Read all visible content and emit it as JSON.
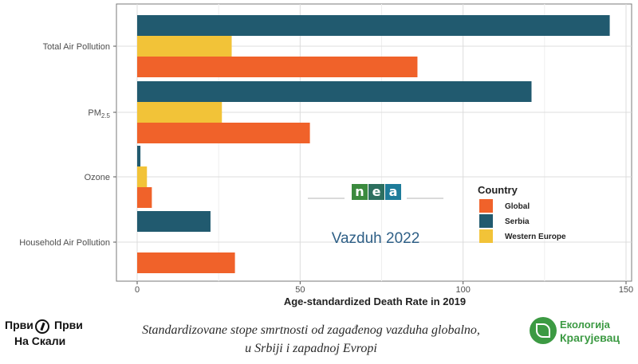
{
  "chart_data": {
    "type": "bar",
    "orientation": "horizontal",
    "categories": [
      "Total Air Pollution",
      "PM",
      "Ozone",
      "Household Air Pollution"
    ],
    "category_subscripts": [
      "",
      "2.5",
      "",
      ""
    ],
    "series": [
      {
        "name": "Global",
        "color": "#f0622a",
        "values": [
          86,
          53,
          4.5,
          30
        ]
      },
      {
        "name": "Serbia",
        "color": "#215a6f",
        "values": [
          145,
          121,
          1,
          22.5
        ]
      },
      {
        "name": "Western Europe",
        "color": "#f2c338",
        "values": [
          29,
          26,
          3,
          0
        ]
      }
    ],
    "bar_order_top_to_bottom": [
      "Serbia",
      "Western Europe",
      "Global"
    ],
    "xlabel": "Age-standardized Death Rate in 2019",
    "xlim": [
      -7,
      150
    ],
    "x_ticks": [
      0,
      50,
      100,
      150
    ],
    "grid": true,
    "legend": {
      "title": "Country",
      "position": "right",
      "entries": [
        "Global",
        "Serbia",
        "Western Europe"
      ]
    }
  },
  "overlay": {
    "logo_letters": [
      "n",
      "e",
      "a"
    ],
    "logo_colors": [
      "#3b8a3e",
      "#2d6f5f",
      "#1e7c9a"
    ],
    "subtitle": "Vazduh 2022"
  },
  "caption": {
    "line1": "Standardizovane stope smrtnosti od zagađenog vazduha globalno,",
    "line2": "u Srbiji i zapadnoj Evropi"
  },
  "brand_left": {
    "word1": "Први",
    "word2": "Први",
    "word3": "На Скали"
  },
  "brand_right": {
    "line1": "Екологија",
    "line2": "Крагујевац"
  }
}
